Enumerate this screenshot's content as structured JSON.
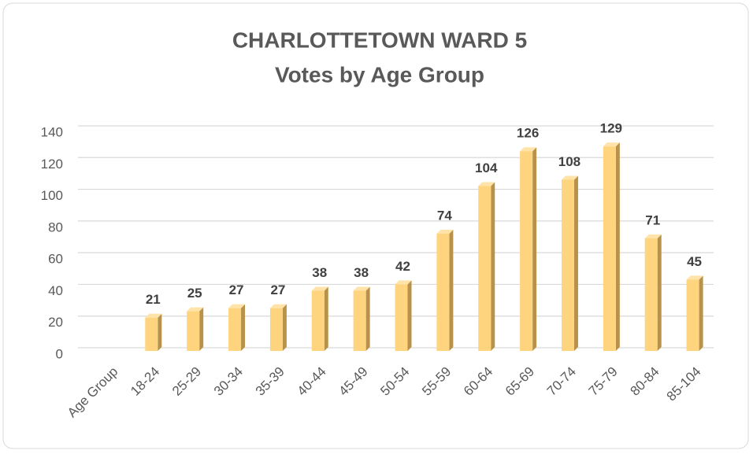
{
  "chart_data": {
    "type": "bar",
    "title": "CHARLOTTETOWN WARD 5",
    "subtitle": "Votes by Age Group",
    "categories": [
      "Age Group",
      "18-24",
      "25-29",
      "30-34",
      "35-39",
      "40-44",
      "45-49",
      "50-54",
      "55-59",
      "60-64",
      "65-69",
      "70-74",
      "75-79",
      "80-84",
      "85-104"
    ],
    "values": [
      null,
      21,
      25,
      27,
      27,
      38,
      38,
      42,
      74,
      104,
      126,
      108,
      129,
      71,
      45
    ],
    "color": "#ffd47f",
    "ylim": [
      0,
      140
    ],
    "yticks": [
      0,
      20,
      40,
      60,
      80,
      100,
      120,
      140
    ],
    "grid": true
  }
}
